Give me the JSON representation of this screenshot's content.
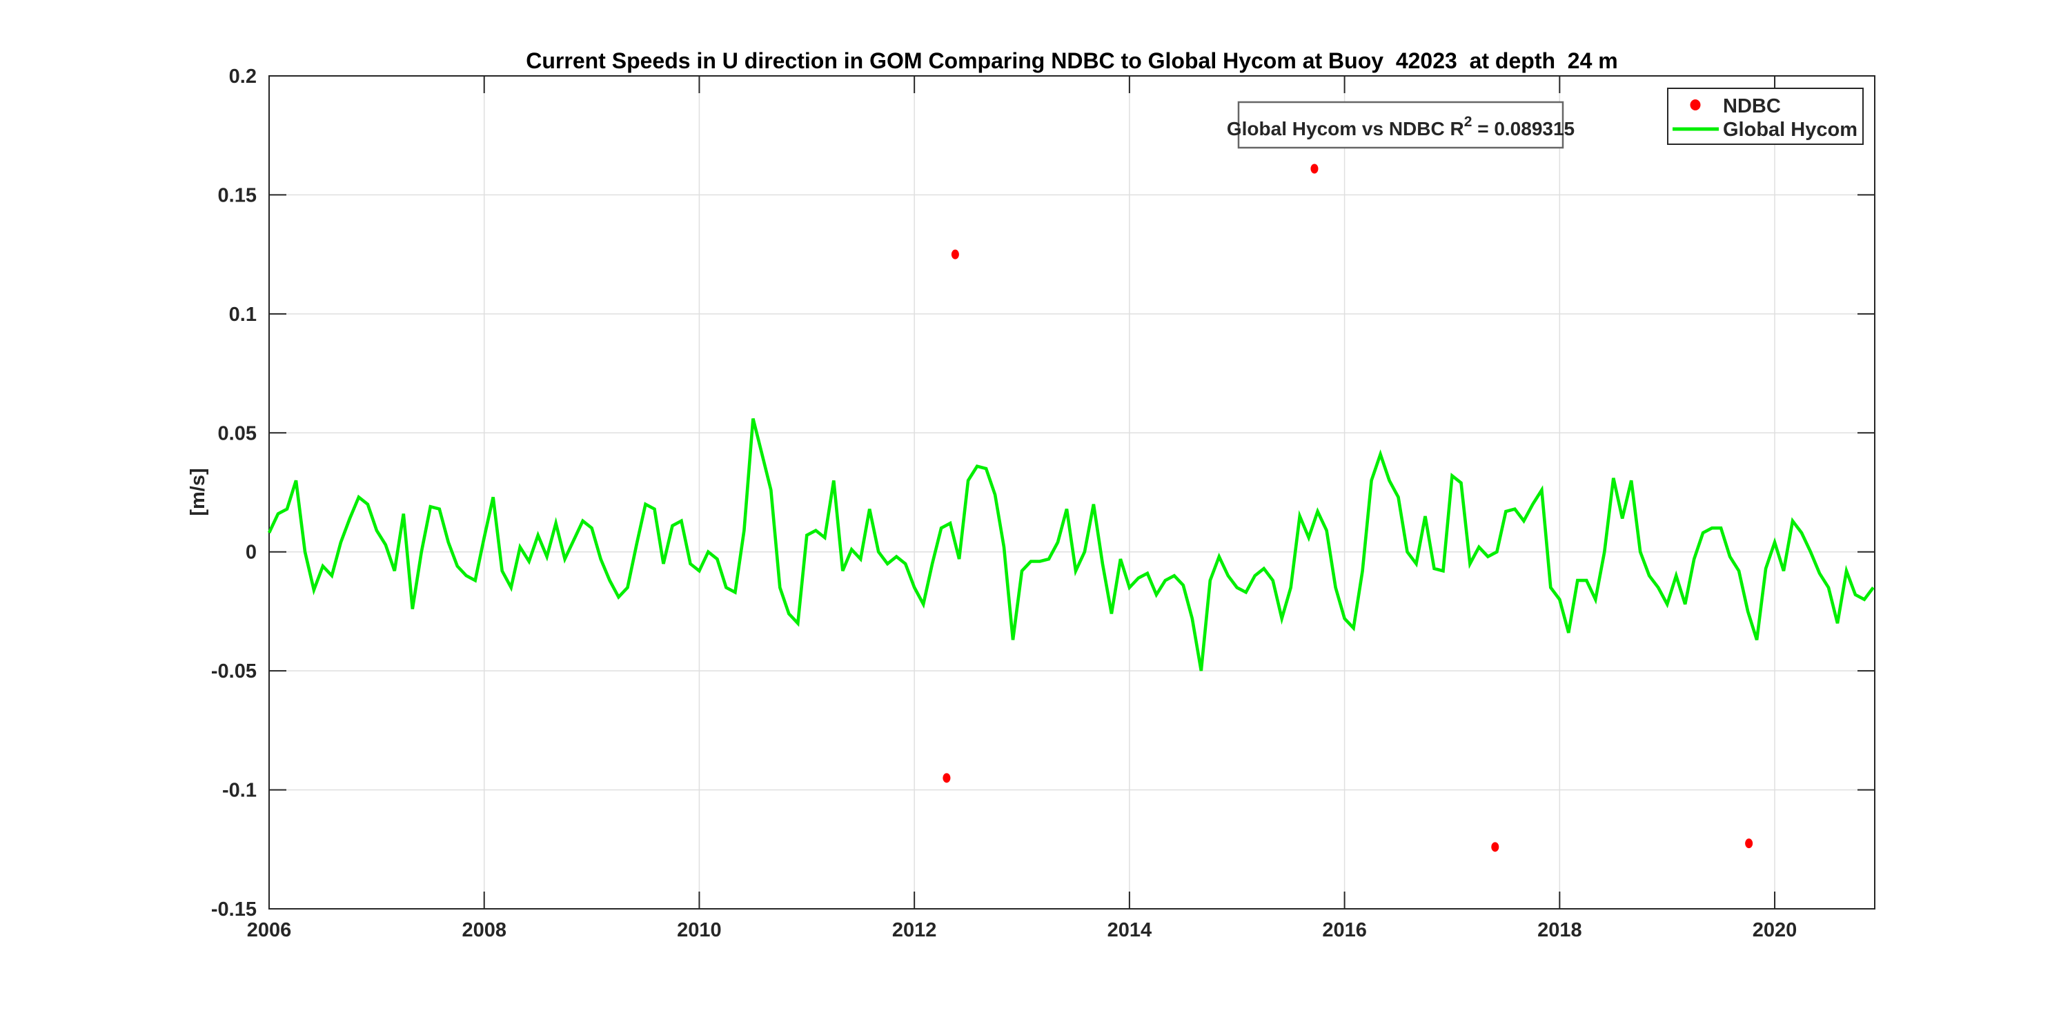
{
  "chart_data": {
    "type": "line",
    "title": "Current Speeds in U direction in GOM Comparing NDBC to Global Hycom at Buoy  42023  at depth  24 m",
    "xlabel": "",
    "ylabel": "[m/s]",
    "xlim": [
      2006,
      2020.93
    ],
    "ylim": [
      -0.15,
      0.2
    ],
    "xticks": [
      2006,
      2008,
      2010,
      2012,
      2014,
      2016,
      2018,
      2020
    ],
    "xtick_labels": [
      "2006",
      "2008",
      "2010",
      "2012",
      "2014",
      "2016",
      "2018",
      "2020"
    ],
    "yticks": [
      0.2,
      0.15,
      0.1,
      0.05,
      0,
      -0.05,
      -0.1,
      -0.15
    ],
    "ytick_labels": [
      "0.2",
      "0.15",
      "0.1",
      "0.05",
      "0",
      "-0.05",
      "-0.1",
      "-0.15"
    ],
    "grid": true,
    "colors": {
      "ndbc": "#ff0000",
      "hycom": "#00ee00",
      "axis": "#262626",
      "grid": "#dfdfdf",
      "annotation_border": "#666666",
      "background": "#ffffff"
    },
    "annotation": {
      "prefix": "Global Hycom vs NDBC R",
      "sup": "2",
      "suffix": " = 0.089315",
      "r_squared": 0.089315
    },
    "legend": {
      "position": "top-right",
      "entries": [
        {
          "label": "NDBC",
          "marker": "dot",
          "color": "#ff0000"
        },
        {
          "label": "Global Hycom",
          "marker": "line",
          "color": "#00ee00"
        }
      ]
    },
    "series": [
      {
        "name": "Global Hycom",
        "type": "line",
        "color": "#00ee00",
        "x_start": 2006,
        "x_step": 0.0833333,
        "values": [
          0.008,
          0.016,
          0.018,
          0.03,
          0.0,
          -0.016,
          -0.006,
          -0.01,
          0.004,
          0.014,
          0.023,
          0.02,
          0.009,
          0.003,
          -0.008,
          0.016,
          -0.024,
          0.0,
          0.019,
          0.018,
          0.004,
          -0.006,
          -0.01,
          -0.012,
          0.006,
          0.023,
          -0.008,
          -0.015,
          0.002,
          -0.004,
          0.007,
          -0.002,
          0.012,
          -0.003,
          0.005,
          0.013,
          0.01,
          -0.003,
          -0.012,
          -0.019,
          -0.015,
          0.003,
          0.02,
          0.018,
          -0.005,
          0.011,
          0.013,
          -0.005,
          -0.008,
          0.0,
          -0.003,
          -0.015,
          -0.017,
          0.009,
          0.056,
          0.041,
          0.026,
          -0.015,
          -0.026,
          -0.03,
          0.007,
          0.009,
          0.006,
          0.03,
          -0.008,
          0.001,
          -0.003,
          0.018,
          0.0,
          -0.005,
          -0.002,
          -0.005,
          -0.015,
          -0.022,
          -0.005,
          0.01,
          0.012,
          -0.003,
          0.03,
          0.036,
          0.035,
          0.024,
          0.002,
          -0.037,
          -0.008,
          -0.004,
          -0.004,
          -0.003,
          0.004,
          0.018,
          -0.008,
          0.0,
          0.02,
          -0.005,
          -0.026,
          -0.003,
          -0.015,
          -0.011,
          -0.009,
          -0.018,
          -0.012,
          -0.01,
          -0.014,
          -0.028,
          -0.05,
          -0.012,
          -0.002,
          -0.01,
          -0.015,
          -0.017,
          -0.01,
          -0.007,
          -0.012,
          -0.028,
          -0.015,
          0.015,
          0.006,
          0.017,
          0.009,
          -0.015,
          -0.028,
          -0.032,
          -0.008,
          0.03,
          0.041,
          0.03,
          0.023,
          0.0,
          -0.005,
          0.015,
          -0.007,
          -0.008,
          0.032,
          0.029,
          -0.005,
          0.002,
          -0.002,
          0.0,
          0.017,
          0.018,
          0.013,
          0.02,
          0.026,
          -0.015,
          -0.02,
          -0.034,
          -0.012,
          -0.012,
          -0.02,
          0.0,
          0.031,
          0.014,
          0.03,
          0.0,
          -0.01,
          -0.015,
          -0.022,
          -0.01,
          -0.022,
          -0.003,
          0.008,
          0.01,
          0.01,
          -0.002,
          -0.008,
          -0.025,
          -0.037,
          -0.007,
          0.004,
          -0.008,
          0.013,
          0.008,
          0.0,
          -0.009,
          -0.015,
          -0.03,
          -0.008,
          -0.018,
          -0.02,
          -0.015
        ]
      },
      {
        "name": "NDBC",
        "type": "scatter",
        "color": "#ff0000",
        "points": [
          [
            2012.3,
            -0.095
          ],
          [
            2012.38,
            0.125
          ],
          [
            2015.72,
            0.161
          ],
          [
            2017.4,
            -0.124
          ],
          [
            2019.76,
            -0.1225
          ]
        ]
      }
    ]
  }
}
